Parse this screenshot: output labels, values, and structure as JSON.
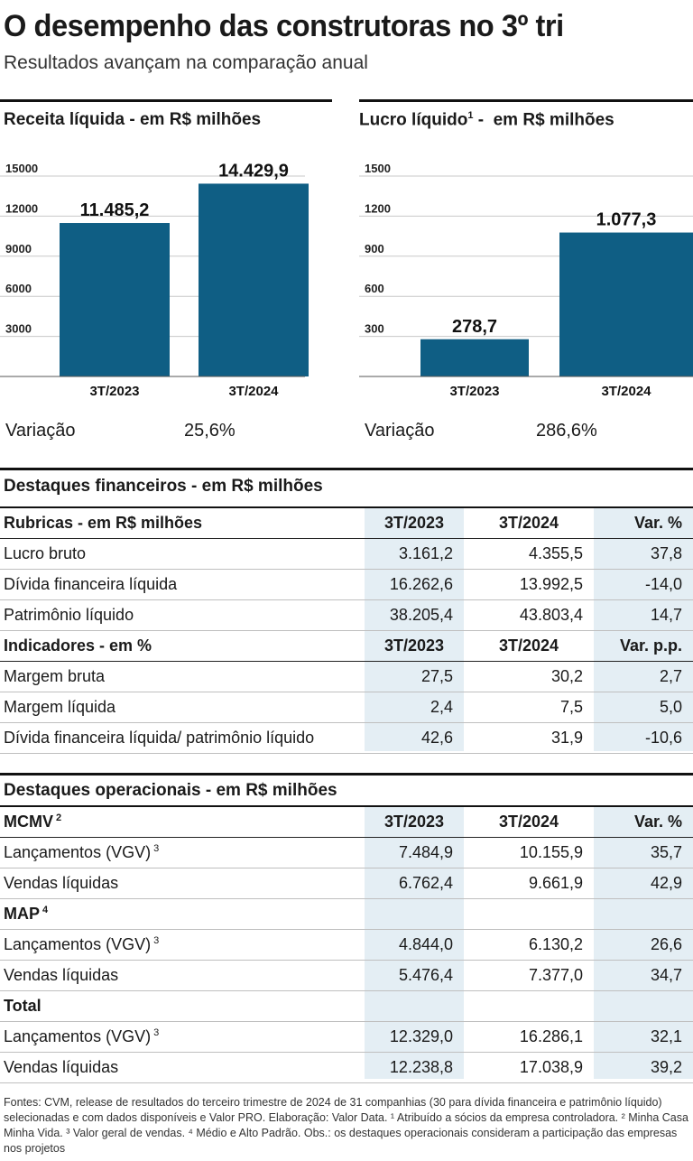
{
  "header": {
    "title": "O desempenho das construtoras no 3º tri",
    "subtitle": "Resultados avançam na comparação anual"
  },
  "chart_data": [
    {
      "type": "bar",
      "title": "Receita líquida -  em R$ milhões",
      "categories": [
        "3T/2023",
        "3T/2024"
      ],
      "values": [
        11485.2,
        14429.9
      ],
      "value_labels": [
        "11.485,2",
        "14.429,9"
      ],
      "yticks": [
        3000,
        6000,
        9000,
        12000,
        15000
      ],
      "ylim": [
        0,
        15000
      ],
      "variation_label": "Variação",
      "variation_value": "25,6%"
    },
    {
      "type": "bar",
      "title": "Lucro líquido",
      "title_sup": "1",
      "title_suffix": " -  em R$ milhões",
      "categories": [
        "3T/2023",
        "3T/2024"
      ],
      "values": [
        278.7,
        1077.3
      ],
      "value_labels": [
        "278,7",
        "1.077,3"
      ],
      "yticks": [
        300,
        600,
        900,
        1200,
        1500
      ],
      "ylim": [
        0,
        1500
      ],
      "variation_label": "Variação",
      "variation_value": "286,6%"
    }
  ],
  "colors": {
    "bar": "#0f5e84",
    "shade": "#e4eef4"
  },
  "financial": {
    "title": "Destaques financeiros - em R$ milhões",
    "rows": [
      {
        "type": "header",
        "cells": [
          "Rubricas - em R$ milhões",
          "3T/2023",
          "3T/2024",
          "Var. %"
        ]
      },
      {
        "type": "data",
        "cells": [
          "Lucro bruto",
          "3.161,2",
          "4.355,5",
          "37,8"
        ]
      },
      {
        "type": "data",
        "cells": [
          "Dívida financeira líquida",
          "16.262,6",
          "13.992,5",
          "-14,0"
        ]
      },
      {
        "type": "data",
        "cells": [
          "Patrimônio líquido",
          "38.205,4",
          "43.803,4",
          "14,7"
        ]
      },
      {
        "type": "header",
        "cells": [
          "Indicadores - em %",
          "3T/2023",
          "3T/2024",
          "Var. p.p."
        ]
      },
      {
        "type": "data",
        "cells": [
          "Margem bruta",
          "27,5",
          "30,2",
          "2,7"
        ]
      },
      {
        "type": "data",
        "cells": [
          "Margem líquida",
          "2,4",
          "7,5",
          "5,0"
        ]
      },
      {
        "type": "data",
        "cells": [
          "Dívida financeira líquida/ patrimônio líquido",
          "42,6",
          "31,9",
          "-10,6"
        ]
      }
    ]
  },
  "operational": {
    "title": "Destaques operacionais - em R$ milhões",
    "rows": [
      {
        "type": "header",
        "cells": [
          "MCMV",
          "3T/2023",
          "3T/2024",
          "Var. %"
        ],
        "sup": "2"
      },
      {
        "type": "data",
        "cells": [
          "Lançamentos (VGV)",
          "7.484,9",
          "10.155,9",
          "35,7"
        ],
        "sup": "3"
      },
      {
        "type": "data",
        "cells": [
          "Vendas líquidas",
          "6.762,4",
          "9.661,9",
          "42,9"
        ]
      },
      {
        "type": "group",
        "cells": [
          "MAP",
          "",
          "",
          ""
        ],
        "sup": "4"
      },
      {
        "type": "data",
        "cells": [
          "Lançamentos (VGV)",
          "4.844,0",
          "6.130,2",
          "26,6"
        ],
        "sup": "3"
      },
      {
        "type": "data",
        "cells": [
          "Vendas líquidas",
          "5.476,4",
          "7.377,0",
          "34,7"
        ]
      },
      {
        "type": "group",
        "cells": [
          "Total",
          "",
          "",
          ""
        ]
      },
      {
        "type": "data",
        "cells": [
          "Lançamentos (VGV)",
          "12.329,0",
          "16.286,1",
          "32,1"
        ],
        "sup": "3"
      },
      {
        "type": "data",
        "cells": [
          "Vendas líquidas",
          "12.238,8",
          "17.038,9",
          "39,2"
        ]
      }
    ]
  },
  "footnote": "Fontes: CVM, release de resultados do terceiro trimestre de 2024 de 31 companhias (30 para dívida financeira e patrimônio líquido) selecionadas e com dados disponíveis e Valor PRO. Elaboração: Valor Data. ¹ Atribuído a sócios da empresa controladora. ² Minha Casa Minha Vida. ³ Valor geral de vendas. ⁴ Médio e Alto Padrão. Obs.: os destaques operacionais consideram a participação das empresas nos projetos"
}
